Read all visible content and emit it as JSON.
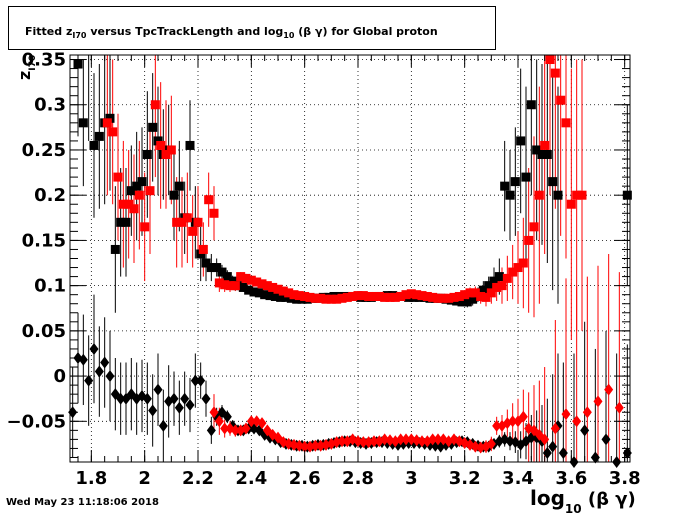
{
  "title": {
    "pre": "Fitted  z",
    "sub": "I70",
    "mid": "  versus TpcTrackLength and log",
    "sub2": "10",
    "post": " (β γ) for Global proton"
  },
  "footer": "Wed May 23 11:18:06 2018",
  "colors": {
    "black_series": "#000000",
    "red_series": "#ff0000",
    "frame": "#000000",
    "grid": "#000000"
  },
  "chart_data": {
    "type": "scatter",
    "title": "Fitted  zI70  versus TpcTrackLength and log10 (β γ) for Global proton",
    "xlabel": {
      "main": "log",
      "sub": "10",
      "rest": " (β γ)"
    },
    "ylabel": {
      "main": "z",
      "sub": "I70"
    },
    "xlim": [
      1.72,
      3.82
    ],
    "ylim": [
      -0.095,
      0.355
    ],
    "grid": true,
    "x_ticks": [
      "1.8",
      "2",
      "2.2",
      "2.4",
      "2.6",
      "2.8",
      "3",
      "3.2",
      "3.4",
      "3.6",
      "3.8"
    ],
    "x_tick_values": [
      1.8,
      2.0,
      2.2,
      2.4,
      2.6,
      2.8,
      3.0,
      3.2,
      3.4,
      3.6,
      3.8
    ],
    "y_ticks": [
      "−0.05",
      "0",
      "0.05",
      "0.1",
      "0.15",
      "0.2",
      "0.25",
      "0.3",
      "0.35"
    ],
    "y_tick_values": [
      -0.05,
      0,
      0.05,
      0.1,
      0.15,
      0.2,
      0.25,
      0.3,
      0.35
    ],
    "series": [
      {
        "marker": "square",
        "color": "#000000",
        "x": [
          1.75,
          1.77,
          1.79,
          1.81,
          1.83,
          1.85,
          1.87,
          1.89,
          1.91,
          1.93,
          1.95,
          1.97,
          1.99,
          2.01,
          2.03,
          2.05,
          2.07,
          2.09,
          2.11,
          2.13,
          2.15,
          2.17,
          2.19,
          2.21,
          2.23,
          2.25,
          2.27,
          2.29,
          2.31,
          2.33,
          2.35,
          2.37,
          2.39,
          2.41,
          2.43,
          2.45,
          2.47,
          2.49,
          2.51,
          2.53,
          2.55,
          2.57,
          2.59,
          2.61,
          2.63,
          2.65,
          2.67,
          2.69,
          2.71,
          2.73,
          2.75,
          2.77,
          2.79,
          2.81,
          2.83,
          2.85,
          2.87,
          2.89,
          2.91,
          2.93,
          2.95,
          2.97,
          2.99,
          3.01,
          3.03,
          3.05,
          3.07,
          3.09,
          3.11,
          3.13,
          3.15,
          3.17,
          3.19,
          3.21,
          3.23,
          3.25,
          3.27,
          3.29,
          3.31,
          3.33,
          3.35,
          3.37,
          3.39,
          3.41,
          3.43,
          3.45,
          3.47,
          3.49,
          3.51,
          3.53,
          3.55,
          3.81
        ],
        "y": [
          0.345,
          0.28,
          0.36,
          0.255,
          0.265,
          0.28,
          0.285,
          0.14,
          0.17,
          0.17,
          0.205,
          0.21,
          0.215,
          0.245,
          0.275,
          0.26,
          0.245,
          0.25,
          0.2,
          0.21,
          0.175,
          0.255,
          0.17,
          0.135,
          0.125,
          0.12,
          0.12,
          0.115,
          0.11,
          0.105,
          0.1,
          0.098,
          0.095,
          0.093,
          0.092,
          0.09,
          0.089,
          0.088,
          0.087,
          0.087,
          0.086,
          0.085,
          0.085,
          0.085,
          0.086,
          0.086,
          0.087,
          0.087,
          0.088,
          0.088,
          0.088,
          0.088,
          0.088,
          0.087,
          0.087,
          0.087,
          0.088,
          0.088,
          0.089,
          0.089,
          0.088,
          0.088,
          0.087,
          0.087,
          0.087,
          0.087,
          0.086,
          0.086,
          0.086,
          0.085,
          0.084,
          0.083,
          0.082,
          0.082,
          0.085,
          0.09,
          0.095,
          0.1,
          0.105,
          0.11,
          0.21,
          0.2,
          0.215,
          0.26,
          0.22,
          0.3,
          0.25,
          0.245,
          0.245,
          0.215,
          0.2,
          0.2
        ],
        "err": [
          0.08,
          0.07,
          0.1,
          0.08,
          0.08,
          0.09,
          0.08,
          0.07,
          0.06,
          0.06,
          0.05,
          0.06,
          0.06,
          0.07,
          0.06,
          0.06,
          0.05,
          0.05,
          0.05,
          0.05,
          0.04,
          0.05,
          0.04,
          0.03,
          0.02,
          0.015,
          0.01,
          0.008,
          0.007,
          0.006,
          0.005,
          0.005,
          0.004,
          0.004,
          0.004,
          0.004,
          0.004,
          0.004,
          0.004,
          0.004,
          0.004,
          0.004,
          0.004,
          0.004,
          0.004,
          0.004,
          0.004,
          0.004,
          0.004,
          0.004,
          0.004,
          0.004,
          0.004,
          0.004,
          0.004,
          0.004,
          0.004,
          0.004,
          0.004,
          0.004,
          0.004,
          0.004,
          0.004,
          0.004,
          0.004,
          0.004,
          0.004,
          0.004,
          0.004,
          0.004,
          0.004,
          0.005,
          0.005,
          0.006,
          0.007,
          0.008,
          0.01,
          0.01,
          0.015,
          0.02,
          0.05,
          0.05,
          0.06,
          0.08,
          0.1,
          0.1,
          0.1,
          0.1,
          0.12,
          0.12,
          0.12,
          0.1
        ]
      },
      {
        "marker": "square",
        "color": "#ff0000",
        "x": [
          1.86,
          1.88,
          1.9,
          1.92,
          1.94,
          1.96,
          1.98,
          2.0,
          2.02,
          2.04,
          2.06,
          2.08,
          2.1,
          2.12,
          2.14,
          2.16,
          2.18,
          2.2,
          2.22,
          2.24,
          2.26,
          2.28,
          2.3,
          2.32,
          2.34,
          2.36,
          2.38,
          2.4,
          2.42,
          2.44,
          2.46,
          2.48,
          2.5,
          2.52,
          2.54,
          2.56,
          2.58,
          2.6,
          2.62,
          2.64,
          2.66,
          2.68,
          2.7,
          2.72,
          2.74,
          2.76,
          2.78,
          2.8,
          2.82,
          2.84,
          2.86,
          2.88,
          2.9,
          2.92,
          2.94,
          2.96,
          2.98,
          3.0,
          3.02,
          3.04,
          3.06,
          3.08,
          3.1,
          3.12,
          3.14,
          3.16,
          3.18,
          3.2,
          3.22,
          3.24,
          3.26,
          3.28,
          3.3,
          3.32,
          3.34,
          3.36,
          3.38,
          3.4,
          3.42,
          3.44,
          3.46,
          3.48,
          3.5,
          3.52,
          3.54,
          3.56,
          3.58,
          3.6,
          3.62,
          3.64
        ],
        "y": [
          0.28,
          0.27,
          0.22,
          0.19,
          0.19,
          0.185,
          0.2,
          0.165,
          0.205,
          0.3,
          0.255,
          0.245,
          0.25,
          0.17,
          0.17,
          0.175,
          0.16,
          0.17,
          0.14,
          0.195,
          0.18,
          0.103,
          0.101,
          0.1,
          0.1,
          0.11,
          0.108,
          0.106,
          0.104,
          0.102,
          0.1,
          0.098,
          0.096,
          0.094,
          0.092,
          0.09,
          0.089,
          0.088,
          0.087,
          0.086,
          0.086,
          0.085,
          0.085,
          0.085,
          0.086,
          0.087,
          0.088,
          0.089,
          0.089,
          0.088,
          0.088,
          0.088,
          0.087,
          0.087,
          0.087,
          0.088,
          0.09,
          0.091,
          0.09,
          0.089,
          0.088,
          0.087,
          0.086,
          0.086,
          0.086,
          0.087,
          0.088,
          0.09,
          0.092,
          0.092,
          0.088,
          0.087,
          0.092,
          0.098,
          0.1,
          0.108,
          0.115,
          0.12,
          0.125,
          0.15,
          0.165,
          0.2,
          0.255,
          0.35,
          0.335,
          0.305,
          0.28,
          0.19,
          0.2,
          0.2
        ],
        "err": [
          0.08,
          0.08,
          0.07,
          0.07,
          0.06,
          0.06,
          0.06,
          0.06,
          0.07,
          0.08,
          0.07,
          0.06,
          0.06,
          0.05,
          0.05,
          0.05,
          0.04,
          0.04,
          0.03,
          0.03,
          0.03,
          0.01,
          0.008,
          0.007,
          0.006,
          0.005,
          0.005,
          0.004,
          0.004,
          0.004,
          0.004,
          0.004,
          0.004,
          0.004,
          0.004,
          0.004,
          0.004,
          0.004,
          0.004,
          0.004,
          0.004,
          0.004,
          0.004,
          0.004,
          0.004,
          0.004,
          0.004,
          0.004,
          0.004,
          0.004,
          0.004,
          0.004,
          0.004,
          0.004,
          0.004,
          0.004,
          0.004,
          0.004,
          0.004,
          0.004,
          0.004,
          0.004,
          0.004,
          0.004,
          0.004,
          0.004,
          0.005,
          0.005,
          0.006,
          0.007,
          0.008,
          0.01,
          0.012,
          0.015,
          0.02,
          0.025,
          0.03,
          0.04,
          0.05,
          0.08,
          0.1,
          0.12,
          0.12,
          0.15,
          0.15,
          0.15,
          0.15,
          0.15,
          0.15,
          0.15
        ]
      },
      {
        "marker": "diamond",
        "color": "#000000",
        "x": [
          1.73,
          1.75,
          1.77,
          1.79,
          1.81,
          1.83,
          1.85,
          1.87,
          1.89,
          1.91,
          1.93,
          1.95,
          1.97,
          1.99,
          2.01,
          2.03,
          2.05,
          2.07,
          2.09,
          2.11,
          2.13,
          2.15,
          2.17,
          2.19,
          2.21,
          2.23,
          2.25,
          2.27,
          2.29,
          2.31,
          2.33,
          2.35,
          2.37,
          2.39,
          2.41,
          2.43,
          2.45,
          2.47,
          2.49,
          2.51,
          2.53,
          2.55,
          2.57,
          2.59,
          2.61,
          2.63,
          2.65,
          2.67,
          2.69,
          2.71,
          2.73,
          2.75,
          2.77,
          2.79,
          2.81,
          2.83,
          2.85,
          2.87,
          2.89,
          2.91,
          2.93,
          2.95,
          2.97,
          2.99,
          3.01,
          3.03,
          3.05,
          3.07,
          3.09,
          3.11,
          3.13,
          3.15,
          3.17,
          3.19,
          3.21,
          3.23,
          3.25,
          3.27,
          3.29,
          3.31,
          3.33,
          3.35,
          3.37,
          3.39,
          3.41,
          3.43,
          3.45,
          3.47,
          3.49,
          3.51,
          3.53,
          3.55,
          3.57,
          3.61,
          3.65,
          3.69,
          3.73,
          3.77,
          3.81
        ],
        "y": [
          -0.04,
          0.02,
          0.018,
          -0.005,
          0.03,
          0.005,
          0.015,
          0.0,
          -0.02,
          -0.025,
          -0.025,
          -0.02,
          -0.025,
          -0.022,
          -0.025,
          -0.038,
          -0.015,
          -0.055,
          -0.028,
          -0.025,
          -0.035,
          -0.025,
          -0.032,
          -0.005,
          -0.005,
          -0.025,
          -0.06,
          -0.045,
          -0.04,
          -0.045,
          -0.055,
          -0.06,
          -0.06,
          -0.058,
          -0.058,
          -0.06,
          -0.065,
          -0.068,
          -0.07,
          -0.073,
          -0.075,
          -0.076,
          -0.077,
          -0.077,
          -0.078,
          -0.077,
          -0.076,
          -0.076,
          -0.075,
          -0.074,
          -0.073,
          -0.072,
          -0.072,
          -0.073,
          -0.074,
          -0.075,
          -0.074,
          -0.073,
          -0.073,
          -0.074,
          -0.075,
          -0.076,
          -0.075,
          -0.074,
          -0.074,
          -0.074,
          -0.075,
          -0.076,
          -0.077,
          -0.078,
          -0.076,
          -0.075,
          -0.073,
          -0.072,
          -0.073,
          -0.075,
          -0.077,
          -0.078,
          -0.078,
          -0.075,
          -0.072,
          -0.07,
          -0.072,
          -0.073,
          -0.076,
          -0.072,
          -0.068,
          -0.068,
          -0.072,
          -0.085,
          -0.078,
          -0.055,
          -0.085,
          -0.095,
          -0.06,
          -0.09,
          -0.07,
          -0.095,
          -0.085
        ],
        "err": [
          0.05,
          0.05,
          0.05,
          0.05,
          0.06,
          0.05,
          0.05,
          0.05,
          0.04,
          0.04,
          0.04,
          0.04,
          0.04,
          0.04,
          0.04,
          0.04,
          0.04,
          0.04,
          0.04,
          0.03,
          0.03,
          0.03,
          0.03,
          0.03,
          0.02,
          0.02,
          0.015,
          0.01,
          0.008,
          0.007,
          0.006,
          0.005,
          0.004,
          0.004,
          0.004,
          0.004,
          0.004,
          0.004,
          0.004,
          0.004,
          0.004,
          0.004,
          0.004,
          0.004,
          0.004,
          0.004,
          0.004,
          0.004,
          0.004,
          0.004,
          0.004,
          0.004,
          0.004,
          0.004,
          0.004,
          0.004,
          0.004,
          0.004,
          0.004,
          0.004,
          0.004,
          0.004,
          0.004,
          0.004,
          0.004,
          0.004,
          0.004,
          0.004,
          0.004,
          0.004,
          0.004,
          0.004,
          0.004,
          0.004,
          0.004,
          0.004,
          0.005,
          0.005,
          0.006,
          0.006,
          0.007,
          0.008,
          0.01,
          0.012,
          0.015,
          0.02,
          0.025,
          0.03,
          0.04,
          0.06,
          0.08,
          0.08,
          0.1,
          0.12,
          0.12,
          0.12,
          0.12,
          0.12,
          0.12
        ]
      },
      {
        "marker": "diamond",
        "color": "#ff0000",
        "x": [
          2.26,
          2.28,
          2.3,
          2.32,
          2.34,
          2.36,
          2.38,
          2.4,
          2.42,
          2.44,
          2.46,
          2.48,
          2.5,
          2.52,
          2.54,
          2.56,
          2.58,
          2.6,
          2.62,
          2.64,
          2.66,
          2.68,
          2.7,
          2.72,
          2.74,
          2.76,
          2.78,
          2.8,
          2.82,
          2.84,
          2.86,
          2.88,
          2.9,
          2.92,
          2.94,
          2.96,
          2.98,
          3.0,
          3.02,
          3.04,
          3.06,
          3.08,
          3.1,
          3.12,
          3.14,
          3.16,
          3.18,
          3.2,
          3.22,
          3.24,
          3.26,
          3.28,
          3.3,
          3.32,
          3.34,
          3.36,
          3.38,
          3.4,
          3.42,
          3.44,
          3.46,
          3.48,
          3.5,
          3.54,
          3.58,
          3.62,
          3.66,
          3.7,
          3.74,
          3.78
        ],
        "y": [
          -0.04,
          -0.05,
          -0.058,
          -0.058,
          -0.06,
          -0.06,
          -0.058,
          -0.05,
          -0.05,
          -0.052,
          -0.06,
          -0.065,
          -0.068,
          -0.073,
          -0.075,
          -0.076,
          -0.077,
          -0.078,
          -0.078,
          -0.077,
          -0.077,
          -0.076,
          -0.075,
          -0.073,
          -0.072,
          -0.072,
          -0.07,
          -0.072,
          -0.073,
          -0.073,
          -0.072,
          -0.072,
          -0.07,
          -0.071,
          -0.072,
          -0.07,
          -0.07,
          -0.07,
          -0.071,
          -0.072,
          -0.072,
          -0.07,
          -0.07,
          -0.07,
          -0.072,
          -0.07,
          -0.072,
          -0.074,
          -0.076,
          -0.078,
          -0.079,
          -0.078,
          -0.075,
          -0.055,
          -0.055,
          -0.052,
          -0.05,
          -0.05,
          -0.045,
          -0.058,
          -0.06,
          -0.065,
          -0.07,
          -0.058,
          -0.042,
          -0.05,
          -0.04,
          -0.028,
          -0.015,
          -0.035
        ],
        "err": [
          0.02,
          0.015,
          0.01,
          0.008,
          0.007,
          0.006,
          0.006,
          0.005,
          0.005,
          0.005,
          0.004,
          0.004,
          0.004,
          0.004,
          0.004,
          0.004,
          0.004,
          0.004,
          0.004,
          0.004,
          0.004,
          0.004,
          0.004,
          0.004,
          0.004,
          0.004,
          0.004,
          0.004,
          0.004,
          0.004,
          0.004,
          0.004,
          0.004,
          0.004,
          0.004,
          0.004,
          0.004,
          0.004,
          0.004,
          0.004,
          0.004,
          0.004,
          0.004,
          0.004,
          0.004,
          0.004,
          0.004,
          0.005,
          0.005,
          0.006,
          0.006,
          0.007,
          0.008,
          0.01,
          0.012,
          0.015,
          0.02,
          0.025,
          0.03,
          0.04,
          0.05,
          0.06,
          0.08,
          0.12,
          0.15,
          0.15,
          0.15,
          0.15,
          0.15,
          0.15
        ]
      }
    ]
  }
}
